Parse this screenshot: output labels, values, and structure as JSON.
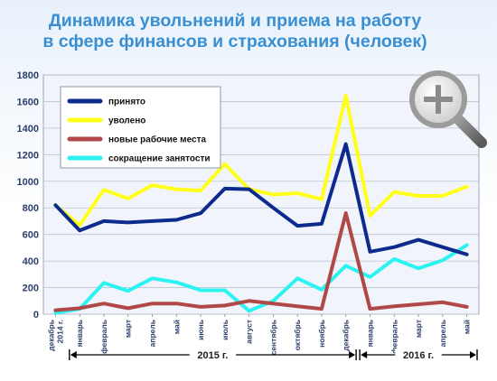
{
  "title_line1": "Динамика увольнений и приема на работу",
  "title_line2": "в сфере финансов и страхования (человек)",
  "zoom_icon": "magnifier-plus-icon",
  "colors": {
    "hired": "#0d2b8c",
    "fired": "#ffff1a",
    "new_jobs": "#b04848",
    "cuts": "#2df2f2"
  },
  "chart_data": {
    "type": "line",
    "title": "Динамика увольнений и приема на работу в сфере финансов и страхования (человек)",
    "ylim": [
      0,
      1800
    ],
    "yticks": [
      0,
      200,
      400,
      600,
      800,
      1000,
      1200,
      1400,
      1600,
      1800
    ],
    "grid": true,
    "legend_position": "top-left",
    "categories": [
      "декабрь 2014 г.",
      "январь",
      "февраль",
      "март",
      "апрель",
      "май",
      "июнь",
      "июль",
      "август",
      "сентябрь",
      "октябрь",
      "ноябрь",
      "декабрь",
      "январь",
      "февраль",
      "март",
      "апрель",
      "май"
    ],
    "year_groups": [
      {
        "label": "2015 г.",
        "from": 1,
        "to": 12
      },
      {
        "label": "2016 г.",
        "from": 13,
        "to": 17
      }
    ],
    "series": [
      {
        "name": "принято",
        "key": "hired",
        "values": [
          820,
          630,
          700,
          690,
          700,
          710,
          760,
          945,
          940,
          800,
          665,
          680,
          1280,
          470,
          505,
          560,
          505,
          450
        ]
      },
      {
        "name": "уволено",
        "key": "fired",
        "values": [
          820,
          670,
          935,
          870,
          970,
          940,
          930,
          1130,
          940,
          900,
          910,
          865,
          1645,
          740,
          920,
          890,
          890,
          960
        ]
      },
      {
        "name": "новые рабочие места",
        "key": "new_jobs",
        "values": [
          30,
          45,
          80,
          45,
          80,
          80,
          55,
          65,
          100,
          80,
          60,
          40,
          760,
          40,
          60,
          75,
          90,
          55
        ]
      },
      {
        "name": "сокращение занятости",
        "key": "cuts",
        "values": [
          10,
          40,
          235,
          175,
          270,
          240,
          180,
          180,
          25,
          100,
          270,
          185,
          365,
          280,
          415,
          345,
          405,
          520
        ]
      }
    ]
  }
}
